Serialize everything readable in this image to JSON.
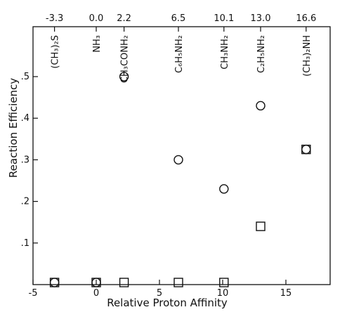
{
  "chart_data": {
    "type": "scatter",
    "title": "",
    "xlabel": "Relative Proton Affinity",
    "ylabel": "Reaction Efficiency",
    "xlim": [
      -5,
      18.5
    ],
    "ylim": [
      0,
      0.62
    ],
    "x_ticks": [
      -5,
      0,
      5,
      10,
      15
    ],
    "x_tick_labels": [
      "-5",
      "0",
      "5",
      "10",
      "15"
    ],
    "y_ticks": [
      0.1,
      0.2,
      0.3,
      0.4,
      0.5
    ],
    "y_tick_labels": [
      ".1",
      ".2",
      ".3",
      ".4",
      ".5"
    ],
    "top_axis": {
      "x": [
        -3.3,
        0.0,
        2.2,
        6.5,
        10.1,
        13.0,
        16.6
      ],
      "labels": [
        "-3.3",
        "0.0",
        "2.2",
        "6.5",
        "10.1",
        "13.0",
        "16.6"
      ]
    },
    "compounds": [
      {
        "x": -3.3,
        "label": "(CH₃)₂S"
      },
      {
        "x": 0.0,
        "label": "NH₃"
      },
      {
        "x": 2.2,
        "label": "CH₃CONH₂"
      },
      {
        "x": 6.5,
        "label": "C₆H₅NH₂"
      },
      {
        "x": 10.1,
        "label": "CH₃NH₂"
      },
      {
        "x": 13.0,
        "label": "C₂H₅NH₂"
      },
      {
        "x": 16.6,
        "label": "(CH₃)₂NH"
      }
    ],
    "series": [
      {
        "marker": "circle",
        "x": [
          -3.3,
          0.0,
          2.2,
          6.5,
          10.1,
          13.0,
          16.6
        ],
        "y": [
          0.005,
          0.005,
          0.5,
          0.3,
          0.23,
          0.43,
          0.325
        ]
      },
      {
        "marker": "square",
        "x": [
          -3.3,
          0.0,
          2.2,
          6.5,
          10.1,
          13.0,
          16.6
        ],
        "y": [
          0.005,
          0.005,
          0.005,
          0.005,
          0.005,
          0.14,
          0.325
        ]
      }
    ],
    "grid": false,
    "legend": "none"
  }
}
